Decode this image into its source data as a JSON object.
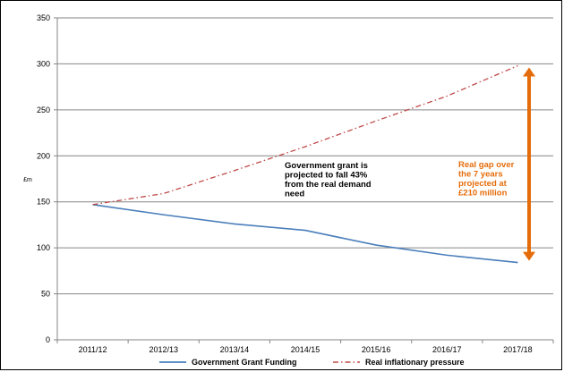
{
  "chart_data": {
    "type": "line",
    "title": "",
    "xlabel": "",
    "ylabel": "£m",
    "ylim": [
      0,
      350
    ],
    "yticks": [
      "0",
      "50",
      "100",
      "150",
      "200",
      "250",
      "300",
      "350"
    ],
    "categories": [
      "2011/12",
      "2012/13",
      "2013/14",
      "2014/15",
      "2015/16",
      "2016/17",
      "2017/18"
    ],
    "series": [
      {
        "name": "Government Grant Funding",
        "color": "#4a7ebb",
        "style": "solid",
        "values": [
          147,
          136,
          126,
          119,
          103,
          92,
          84
        ]
      },
      {
        "name": "Real inflationary pressure",
        "color": "#be4b48",
        "style": "dash-dot",
        "values": [
          147,
          159,
          184,
          210,
          238,
          265,
          298
        ]
      }
    ],
    "gridlines": "horizontal",
    "legend_position": "bottom",
    "annotations": {
      "grant_fall": [
        "Government grant is",
        "projected to fall 43%",
        "from the real demand",
        "need"
      ],
      "gap": [
        "Real  gap over",
        "the 7 years",
        "projected at",
        "£210 million"
      ],
      "gap_color": "#e46c0a",
      "gap_from": 84,
      "gap_to": 298
    }
  }
}
